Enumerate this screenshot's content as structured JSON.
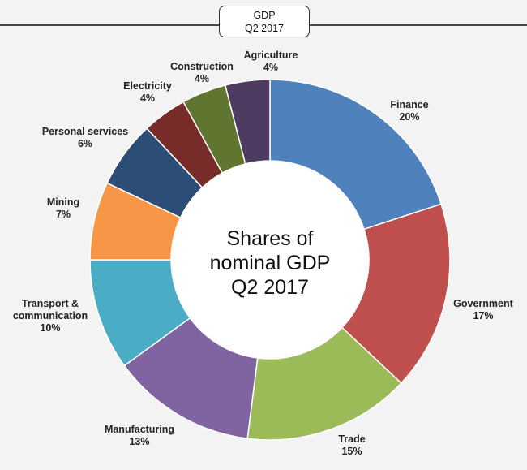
{
  "header": {
    "line1": "GDP",
    "line2": "Q2 2017"
  },
  "chart_data": {
    "type": "pie",
    "title": "Shares of nominal GDP Q2 2017",
    "title_lines": [
      "Shares of",
      "nominal GDP",
      "Q2 2017"
    ],
    "donut": true,
    "slices": [
      {
        "label": "Finance",
        "value": 20,
        "value_label": "20%",
        "color": "#4f81bd"
      },
      {
        "label": "Government",
        "value": 17,
        "value_label": "17%",
        "color": "#c0504d"
      },
      {
        "label": "Trade",
        "value": 15,
        "value_label": "15%",
        "color": "#9bbb59"
      },
      {
        "label": "Manufacturing",
        "value": 13,
        "value_label": "13%",
        "color": "#8064a2"
      },
      {
        "label": "Transport & communication",
        "label_lines": [
          "Transport &",
          "communication"
        ],
        "value": 10,
        "value_label": "10%",
        "color": "#4bacc6"
      },
      {
        "label": "Mining",
        "value": 7,
        "value_label": "7%",
        "color": "#f79646"
      },
      {
        "label": "Personal services",
        "value": 6,
        "value_label": "6%",
        "color": "#2c4d75"
      },
      {
        "label": "Electricity",
        "value": 4,
        "value_label": "4%",
        "color": "#772c2a"
      },
      {
        "label": "Construction",
        "value": 4,
        "value_label": "4%",
        "color": "#5f7530"
      },
      {
        "label": "Agriculture",
        "value": 4,
        "value_label": "4%",
        "color": "#4d3b62"
      }
    ]
  }
}
